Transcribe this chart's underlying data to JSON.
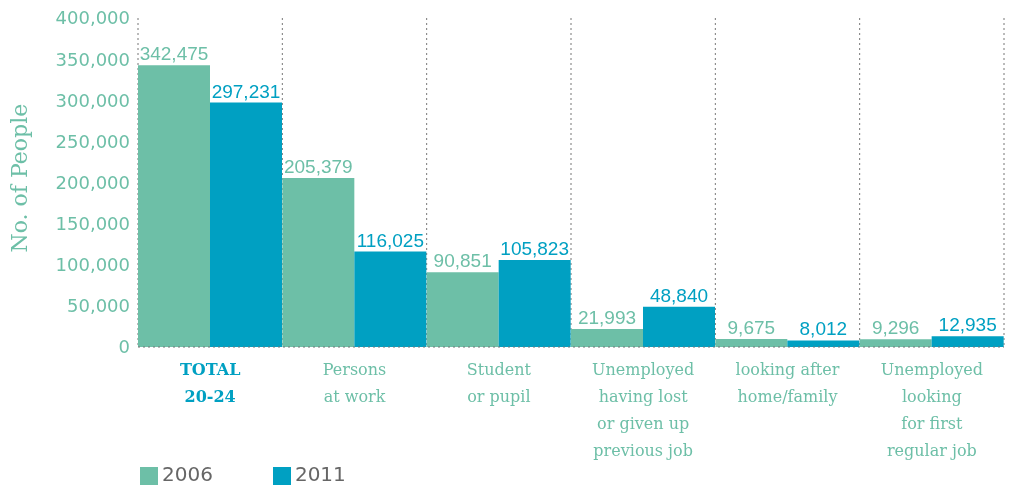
{
  "chart_data": {
    "type": "bar",
    "ylabel": "No. of People",
    "categories": [
      "TOTAL\n20-24",
      "Persons\nat work",
      "Student\nor pupil",
      "Unemployed\nhaving lost\nor given up\nprevious job",
      "looking after\nhome/family",
      "Unemployed\nlooking\nfor first\nregular job"
    ],
    "series": [
      {
        "name": "2006",
        "color": "#6dbfa7",
        "values": [
          342475,
          205379,
          90851,
          21993,
          9675,
          9296
        ],
        "value_labels": [
          "342,475",
          "205,379",
          "90,851",
          "21,993",
          "9,675",
          "9,296"
        ]
      },
      {
        "name": "2011",
        "color": "#00a0c2",
        "values": [
          297231,
          116025,
          105823,
          48840,
          8012,
          12935
        ],
        "value_labels": [
          "297,231",
          "116,025",
          "105,823",
          "48,840",
          "8,012",
          "12,935"
        ]
      }
    ],
    "ylim": [
      0,
      400000
    ],
    "yticks": [
      0,
      {
        "value": 50000,
        "label": "50,000"
      },
      {
        "value": 100000,
        "label": "100,000"
      },
      {
        "value": 150000,
        "label": "150,000"
      },
      {
        "value": 200000,
        "label": "200,000"
      },
      {
        "value": 250000,
        "label": "250,000"
      },
      {
        "value": 300000,
        "label": "300,000"
      },
      {
        "value": 350000,
        "label": "350,000"
      },
      {
        "value": 400000,
        "label": "400,000"
      }
    ],
    "grid": "x",
    "legend": "bottom left"
  }
}
